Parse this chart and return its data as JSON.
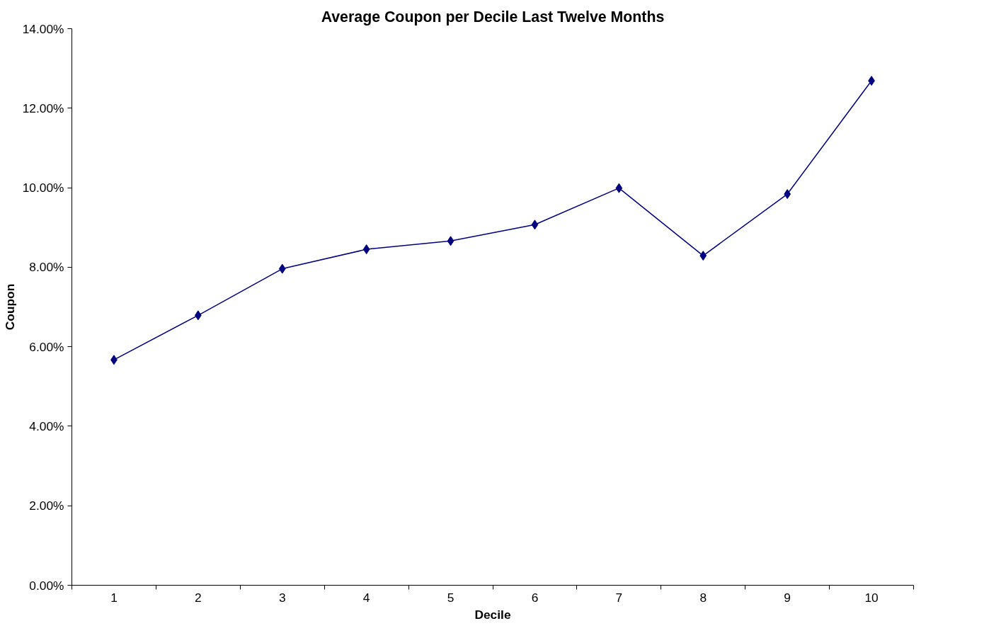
{
  "chart_data": {
    "type": "line",
    "title": "Average Coupon per Decile Last Twelve Months",
    "xlabel": "Decile",
    "ylabel": "Coupon",
    "categories": [
      "1",
      "2",
      "3",
      "4",
      "5",
      "6",
      "7",
      "8",
      "9",
      "10"
    ],
    "series": [
      {
        "color": "#000080",
        "values": [
          5.67,
          6.79,
          7.96,
          8.45,
          8.66,
          9.07,
          9.99,
          8.29,
          9.84,
          12.69
        ]
      }
    ],
    "ylim": [
      0,
      14
    ],
    "yticks": [
      {
        "value": 0,
        "label": "0.00%"
      },
      {
        "value": 2,
        "label": "2.00%"
      },
      {
        "value": 4,
        "label": "4.00%"
      },
      {
        "value": 6,
        "label": "6.00%"
      },
      {
        "value": 8,
        "label": "8.00%"
      },
      {
        "value": 10,
        "label": "10.00%"
      },
      {
        "value": 12,
        "label": "12.00%"
      },
      {
        "value": 14,
        "label": "14.00%"
      }
    ],
    "marker": "diamond",
    "line_style": "solid",
    "grid": false
  }
}
